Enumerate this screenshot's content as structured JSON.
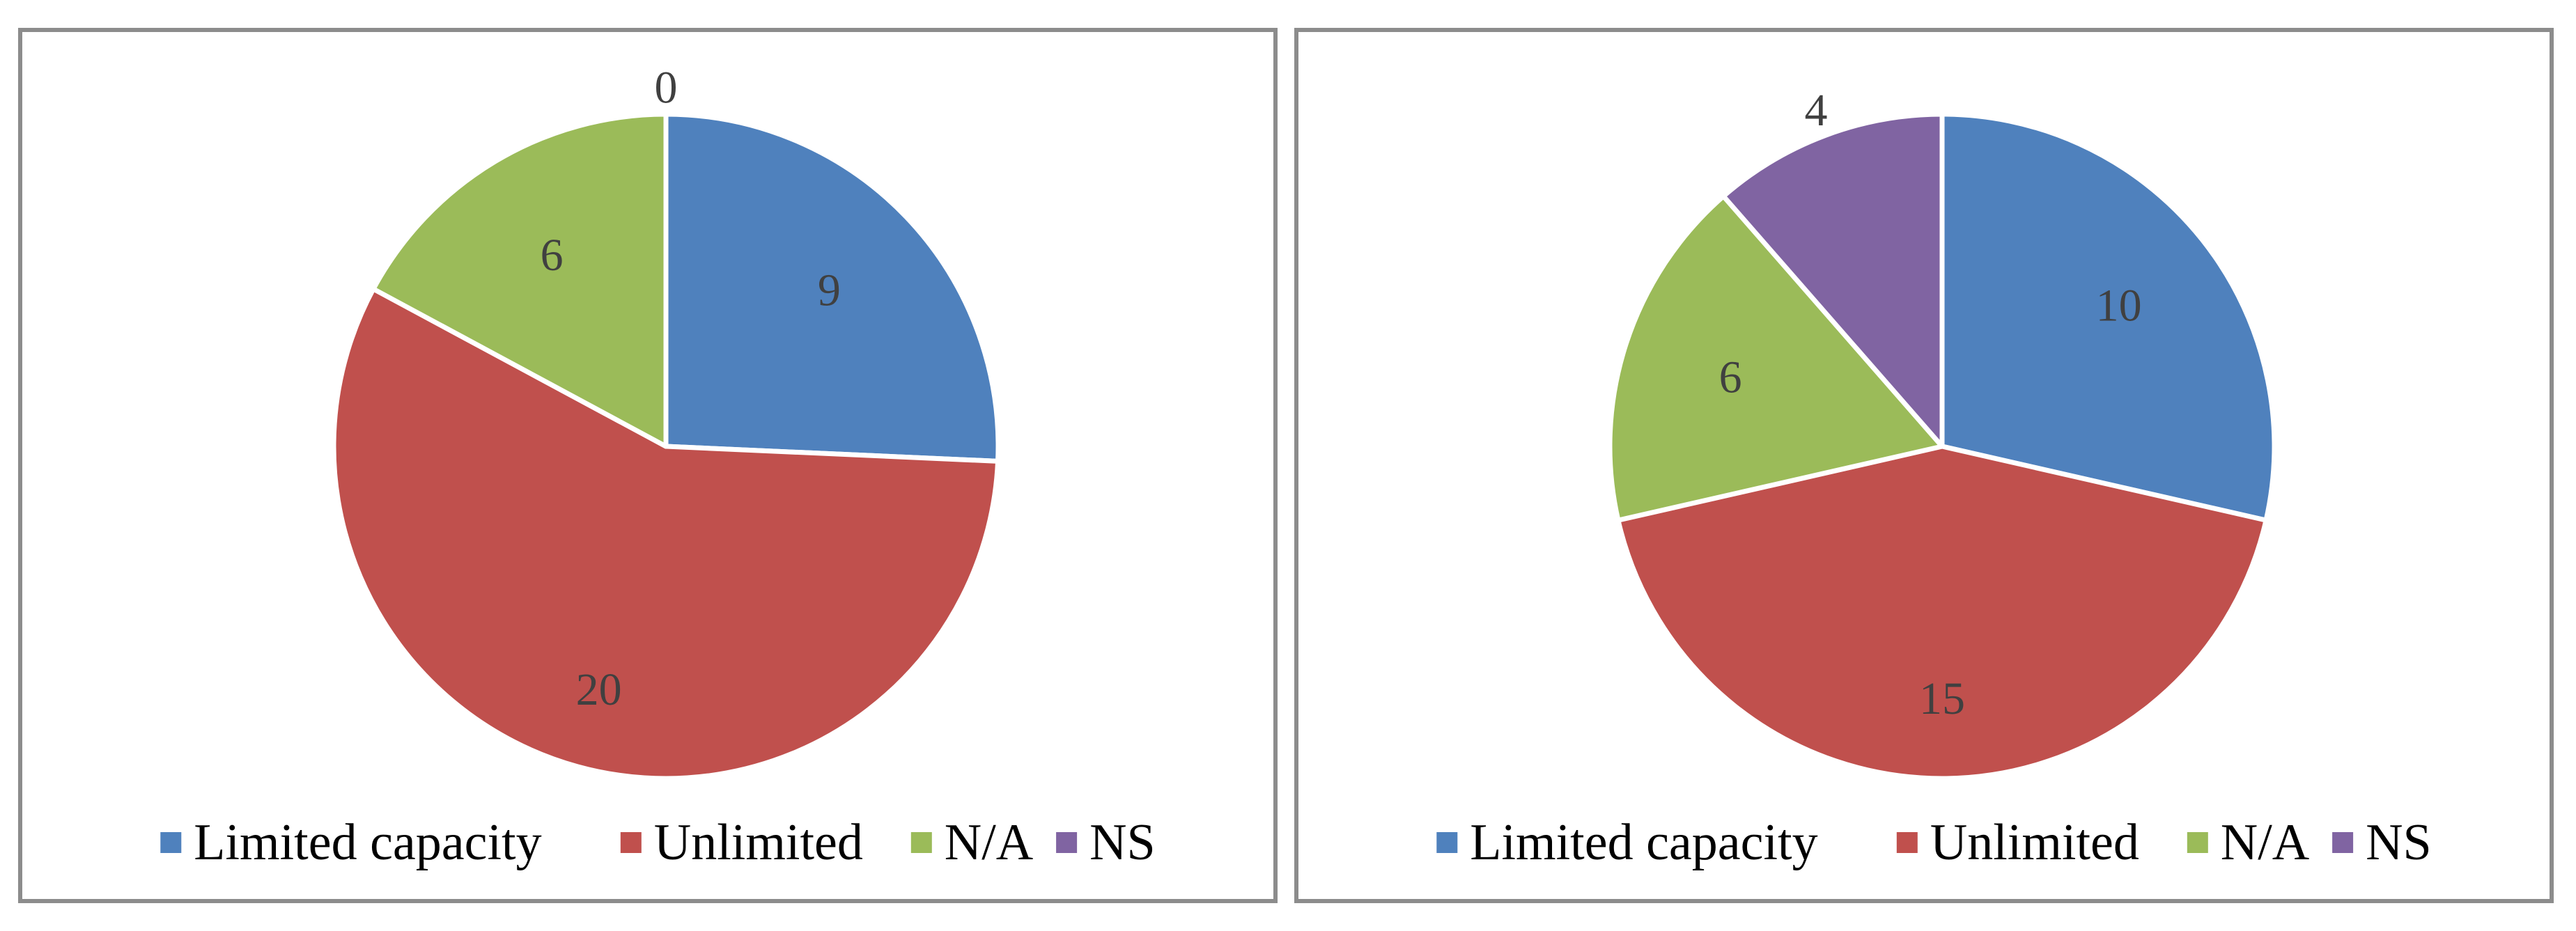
{
  "chart_data": [
    {
      "type": "pie",
      "title": "",
      "categories": [
        "Limited capacity",
        "Unlimited",
        "N/A",
        "NS"
      ],
      "values": [
        9,
        20,
        6,
        0
      ],
      "data_labels": [
        "9",
        "20",
        "6",
        "0"
      ],
      "colors": [
        "#4F81BD",
        "#C0504D",
        "#9BBB59",
        "#8064A2"
      ],
      "legend_position": "bottom",
      "start_angle_deg": 0,
      "direction": "clockwise"
    },
    {
      "type": "pie",
      "title": "",
      "categories": [
        "Limited capacity",
        "Unlimited",
        "N/A",
        "NS"
      ],
      "values": [
        10,
        15,
        6,
        4
      ],
      "data_labels": [
        "10",
        "15",
        "6",
        "4"
      ],
      "colors": [
        "#4F81BD",
        "#C0504D",
        "#9BBB59",
        "#8064A2"
      ],
      "legend_position": "bottom",
      "start_angle_deg": 0,
      "direction": "clockwise"
    }
  ]
}
